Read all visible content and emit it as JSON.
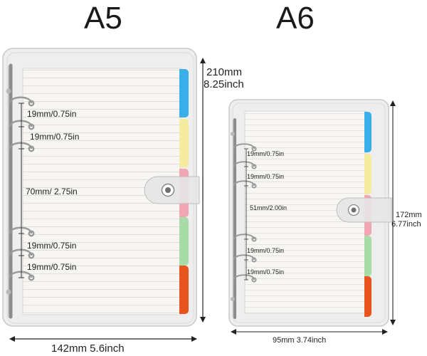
{
  "titles": {
    "a5": "A5",
    "a6": "A6"
  },
  "a5": {
    "spacing_labels": [
      "19mm/0.75in",
      "19mm/0.75in",
      "70mm/ 2.75in",
      "19mm/0.75in",
      "19mm/0.75in"
    ],
    "height_mm": "210mm",
    "height_in": "8.25inch",
    "width_label": "142mm  5.6inch"
  },
  "a6": {
    "spacing_labels": [
      "19mm/0.75in",
      "19mm/0.75in",
      "51mm/2.00in",
      "19mm/0.75in",
      "19mm/0.75in"
    ],
    "height_mm": "172mm",
    "height_in": "6.77inch",
    "width_label": "95mm   3.74inch"
  },
  "colors": {
    "tab_blue": "#3aaee8",
    "tab_yellow": "#f5eca0",
    "tab_pink": "#f2a6b4",
    "tab_green": "#a9dba8",
    "tab_orange": "#e8541e",
    "cover": "#eeeeee",
    "paper": "#f8f6f2",
    "ring": "#8c8c8c"
  }
}
